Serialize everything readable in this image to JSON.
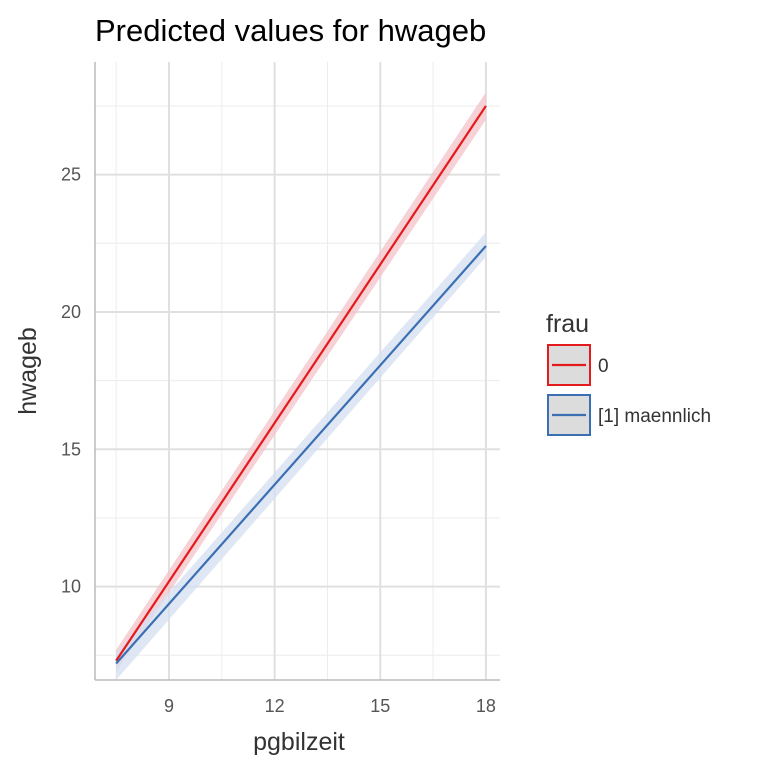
{
  "chart_data": {
    "type": "line",
    "title": "Predicted values for hwageb",
    "xlabel": "pgbilzeit",
    "ylabel": "hwageb",
    "xlim": [
      6.9,
      18.4
    ],
    "ylim": [
      6.6,
      29.1
    ],
    "x_ticks": [
      9,
      12,
      15,
      18
    ],
    "y_ticks": [
      10,
      15,
      20,
      25
    ],
    "grid": true,
    "legend": {
      "title": "frau",
      "position": "right"
    },
    "series": [
      {
        "name": "0",
        "color": "#e41a1c",
        "band_color": "#f3c3c9",
        "x": [
          7.5,
          18
        ],
        "y": [
          7.3,
          27.5
        ],
        "ci_lower": [
          6.9,
          27.0
        ],
        "ci_upper": [
          7.7,
          28.0
        ]
      },
      {
        "name": "[1] maennlich",
        "color": "#3a6fb4",
        "band_color": "#d4dff0",
        "x": [
          7.5,
          18
        ],
        "y": [
          7.2,
          22.4
        ],
        "ci_lower": [
          6.6,
          22.0
        ],
        "ci_upper": [
          7.6,
          22.9
        ]
      }
    ]
  }
}
